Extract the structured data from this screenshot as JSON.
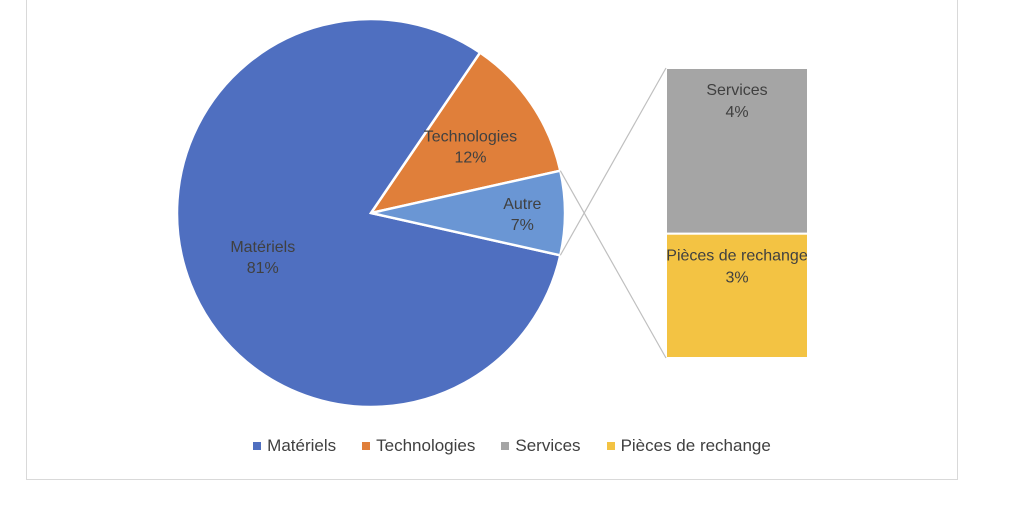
{
  "chart_data": {
    "type": "pie",
    "subtype": "pie-of-bar",
    "slices": [
      {
        "name": "Matériels",
        "value": 81,
        "label": "81%",
        "color": "#4f6fc0"
      },
      {
        "name": "Technologies",
        "value": 12,
        "label": "12%",
        "color": "#e07f3a"
      },
      {
        "name": "Autre",
        "value": 7,
        "label": "7%",
        "color": "#6a96d4"
      }
    ],
    "breakout": {
      "from": "Autre",
      "bars": [
        {
          "name": "Services",
          "value": 4,
          "label": "4%",
          "color": "#a5a5a5"
        },
        {
          "name": "Pièces de rechange",
          "value": 3,
          "label": "3%",
          "color": "#f3c343"
        }
      ]
    },
    "legend_position": "bottom",
    "legend": [
      {
        "name": "Matériels",
        "color": "#4f6fc0"
      },
      {
        "name": "Technologies",
        "color": "#e07f3a"
      },
      {
        "name": "Services",
        "color": "#a5a5a5"
      },
      {
        "name": "Pièces de rechange",
        "color": "#f3c343"
      }
    ]
  }
}
